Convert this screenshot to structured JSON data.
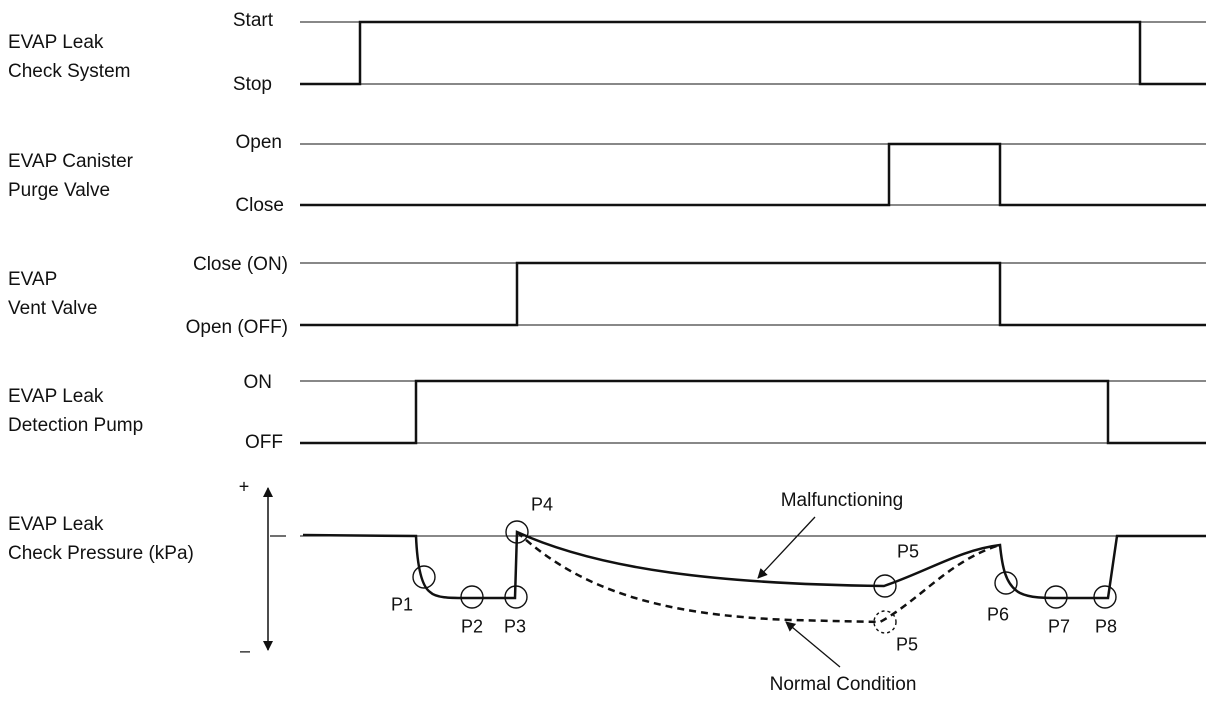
{
  "rows": [
    {
      "label_lines": [
        "EVAP Leak",
        "Check System"
      ],
      "high": "Start",
      "low": "Stop"
    },
    {
      "label_lines": [
        "EVAP Canister",
        "Purge Valve"
      ],
      "high": "Open",
      "low": "Close"
    },
    {
      "label_lines": [
        "EVAP",
        "Vent Valve"
      ],
      "high": "Close (ON)",
      "low": "Open (OFF)"
    },
    {
      "label_lines": [
        "EVAP Leak",
        "Detection Pump"
      ],
      "high": "ON",
      "low": "OFF"
    }
  ],
  "pressure": {
    "label_lines": [
      "EVAP Leak",
      "Check Pressure (kPa)"
    ],
    "plus_sign": "+",
    "minus_sign": "–"
  },
  "points": [
    "P1",
    "P2",
    "P3",
    "P4",
    "P5",
    "P5",
    "P6",
    "P7",
    "P8"
  ],
  "annotations": {
    "malfunction": "Malfunctioning",
    "normal": "Normal Condition"
  }
}
